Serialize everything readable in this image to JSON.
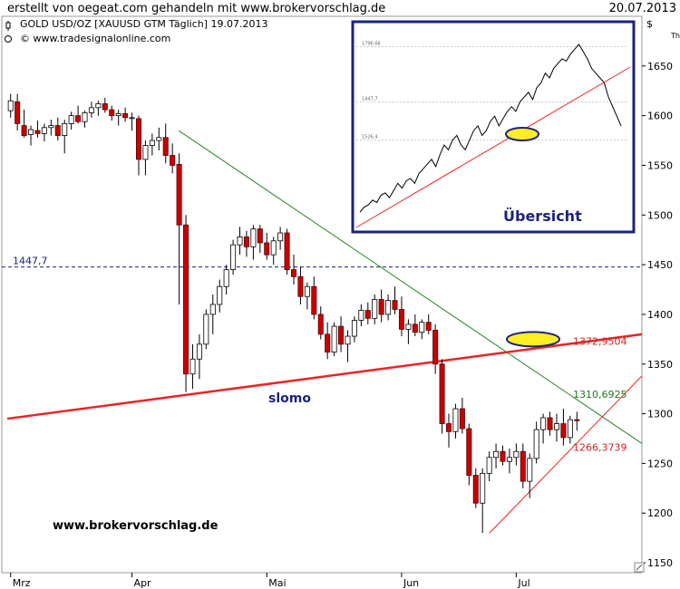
{
  "header": {
    "title": "erstellt von oegeat.com gehandeln mit www.brokervorschlag.de",
    "date": "20.07.2013"
  },
  "meta": {
    "instrument": "GOLD USD/OZ [XAUUSD GTM  Täglich] 19.07.2013",
    "source": "© www.tradesignalonline.com",
    "currency_symbol": "$",
    "corner_symbol": "Th"
  },
  "watermark": "www.brokervorschlag.de",
  "colors": {
    "up_candle": "#ffffff",
    "down_candle": "#cc0000",
    "support_line": "#ee2222",
    "downtrend_line": "#228822",
    "inset_border": "#1a237e",
    "highlight": "#ffee22"
  },
  "chart_data": {
    "type": "candlestick",
    "y_axis": {
      "ticks": [
        1150,
        1200,
        1250,
        1300,
        1350,
        1400,
        1450,
        1500,
        1550,
        1600,
        1650
      ],
      "range": [
        1140,
        1700
      ]
    },
    "x_axis": {
      "ticks": [
        "Mrz",
        "Apr",
        "Mai",
        "Jun",
        "Jul"
      ]
    },
    "x_tick_index": [
      0,
      18,
      38,
      58,
      75
    ],
    "horizontal_level": {
      "value": 1447.7,
      "label": "1447,7"
    },
    "annotations": [
      {
        "label": "1372,9504",
        "color": "#cc2222"
      },
      {
        "label": "1310,6925",
        "color": "#227722"
      },
      {
        "label": "1266,3739",
        "color": "#cc2222"
      },
      {
        "label": "slomo",
        "color": "#1a237e"
      }
    ],
    "lines": [
      {
        "name": "support",
        "points": [
          [
            0,
            1295
          ],
          [
            100,
            1380
          ]
        ]
      },
      {
        "name": "downtrend",
        "points": [
          [
            27,
            1585
          ],
          [
            100,
            1270
          ]
        ]
      },
      {
        "name": "short-term-support",
        "points": [
          [
            76,
            1180
          ],
          [
            100,
            1338
          ]
        ]
      }
    ],
    "candles": [
      [
        1605,
        1622,
        1598,
        1615
      ],
      [
        1614,
        1622,
        1585,
        1592
      ],
      [
        1590,
        1606,
        1578,
        1580
      ],
      [
        1581,
        1590,
        1570,
        1586
      ],
      [
        1585,
        1595,
        1578,
        1582
      ],
      [
        1582,
        1592,
        1574,
        1588
      ],
      [
        1588,
        1596,
        1580,
        1590
      ],
      [
        1590,
        1598,
        1575,
        1580
      ],
      [
        1580,
        1596,
        1562,
        1592
      ],
      [
        1592,
        1604,
        1586,
        1600
      ],
      [
        1600,
        1610,
        1592,
        1594
      ],
      [
        1594,
        1605,
        1588,
        1603
      ],
      [
        1603,
        1614,
        1598,
        1608
      ],
      [
        1608,
        1615,
        1600,
        1612
      ],
      [
        1612,
        1618,
        1603,
        1606
      ],
      [
        1606,
        1610,
        1595,
        1600
      ],
      [
        1600,
        1606,
        1590,
        1602
      ],
      [
        1602,
        1608,
        1594,
        1598
      ],
      [
        1598,
        1603,
        1585,
        1598
      ],
      [
        1597,
        1600,
        1540,
        1556
      ],
      [
        1556,
        1575,
        1540,
        1570
      ],
      [
        1570,
        1582,
        1560,
        1575
      ],
      [
        1575,
        1588,
        1565,
        1578
      ],
      [
        1578,
        1592,
        1552,
        1560
      ],
      [
        1560,
        1572,
        1542,
        1550
      ],
      [
        1551,
        1562,
        1410,
        1490
      ],
      [
        1490,
        1500,
        1322,
        1340
      ],
      [
        1340,
        1370,
        1325,
        1355
      ],
      [
        1355,
        1380,
        1335,
        1370
      ],
      [
        1370,
        1405,
        1365,
        1400
      ],
      [
        1400,
        1420,
        1380,
        1410
      ],
      [
        1410,
        1435,
        1402,
        1428
      ],
      [
        1428,
        1450,
        1420,
        1445
      ],
      [
        1445,
        1475,
        1440,
        1470
      ],
      [
        1470,
        1488,
        1460,
        1478
      ],
      [
        1478,
        1484,
        1458,
        1468
      ],
      [
        1468,
        1490,
        1455,
        1486
      ],
      [
        1486,
        1490,
        1462,
        1472
      ],
      [
        1472,
        1482,
        1455,
        1460
      ],
      [
        1460,
        1478,
        1450,
        1474
      ],
      [
        1474,
        1488,
        1465,
        1482
      ],
      [
        1482,
        1486,
        1440,
        1445
      ],
      [
        1445,
        1460,
        1430,
        1438
      ],
      [
        1438,
        1448,
        1410,
        1418
      ],
      [
        1418,
        1432,
        1405,
        1428
      ],
      [
        1428,
        1438,
        1395,
        1400
      ],
      [
        1400,
        1408,
        1375,
        1380
      ],
      [
        1380,
        1392,
        1355,
        1362
      ],
      [
        1362,
        1392,
        1358,
        1388
      ],
      [
        1388,
        1398,
        1362,
        1370
      ],
      [
        1370,
        1384,
        1352,
        1378
      ],
      [
        1378,
        1398,
        1372,
        1394
      ],
      [
        1394,
        1410,
        1388,
        1404
      ],
      [
        1404,
        1412,
        1390,
        1396
      ],
      [
        1396,
        1420,
        1390,
        1415
      ],
      [
        1415,
        1425,
        1392,
        1400
      ],
      [
        1400,
        1420,
        1394,
        1414
      ],
      [
        1414,
        1428,
        1400,
        1405
      ],
      [
        1405,
        1418,
        1378,
        1385
      ],
      [
        1385,
        1395,
        1370,
        1390
      ],
      [
        1390,
        1400,
        1378,
        1382
      ],
      [
        1382,
        1395,
        1375,
        1392
      ],
      [
        1392,
        1400,
        1380,
        1384
      ],
      [
        1384,
        1390,
        1340,
        1350
      ],
      [
        1350,
        1355,
        1280,
        1290
      ],
      [
        1290,
        1300,
        1266,
        1282
      ],
      [
        1282,
        1310,
        1275,
        1305
      ],
      [
        1305,
        1316,
        1280,
        1285
      ],
      [
        1285,
        1290,
        1228,
        1238
      ],
      [
        1238,
        1245,
        1205,
        1210
      ],
      [
        1210,
        1245,
        1180,
        1240
      ],
      [
        1240,
        1262,
        1232,
        1256
      ],
      [
        1256,
        1270,
        1245,
        1262
      ],
      [
        1262,
        1268,
        1248,
        1252
      ],
      [
        1252,
        1265,
        1240,
        1256
      ],
      [
        1256,
        1270,
        1248,
        1262
      ],
      [
        1262,
        1270,
        1225,
        1232
      ],
      [
        1232,
        1260,
        1215,
        1255
      ],
      [
        1255,
        1292,
        1250,
        1284
      ],
      [
        1284,
        1300,
        1270,
        1296
      ],
      [
        1296,
        1302,
        1278,
        1284
      ],
      [
        1284,
        1300,
        1272,
        1290
      ],
      [
        1290,
        1305,
        1268,
        1276
      ],
      [
        1276,
        1298,
        1270,
        1294
      ],
      [
        1294,
        1302,
        1283,
        1293
      ]
    ]
  },
  "inset": {
    "title": "Übersicht",
    "levels": [
      {
        "label": "1796,66"
      },
      {
        "label": "1447,7"
      },
      {
        "label": "1526,4"
      }
    ],
    "points": [
      1560,
      1570,
      1575,
      1585,
      1580,
      1595,
      1600,
      1590,
      1605,
      1620,
      1610,
      1625,
      1630,
      1620,
      1640,
      1650,
      1660,
      1670,
      1655,
      1680,
      1700,
      1690,
      1710,
      1720,
      1700,
      1690,
      1710,
      1730,
      1740,
      1720,
      1730,
      1750,
      1760,
      1740,
      1755,
      1770,
      1780,
      1770,
      1790,
      1800,
      1810,
      1795,
      1820,
      1830,
      1850,
      1840,
      1860,
      1870,
      1880,
      1875,
      1890,
      1900,
      1910,
      1895,
      1880,
      1860,
      1850,
      1840,
      1830,
      1800,
      1780,
      1760,
      1740
    ]
  }
}
